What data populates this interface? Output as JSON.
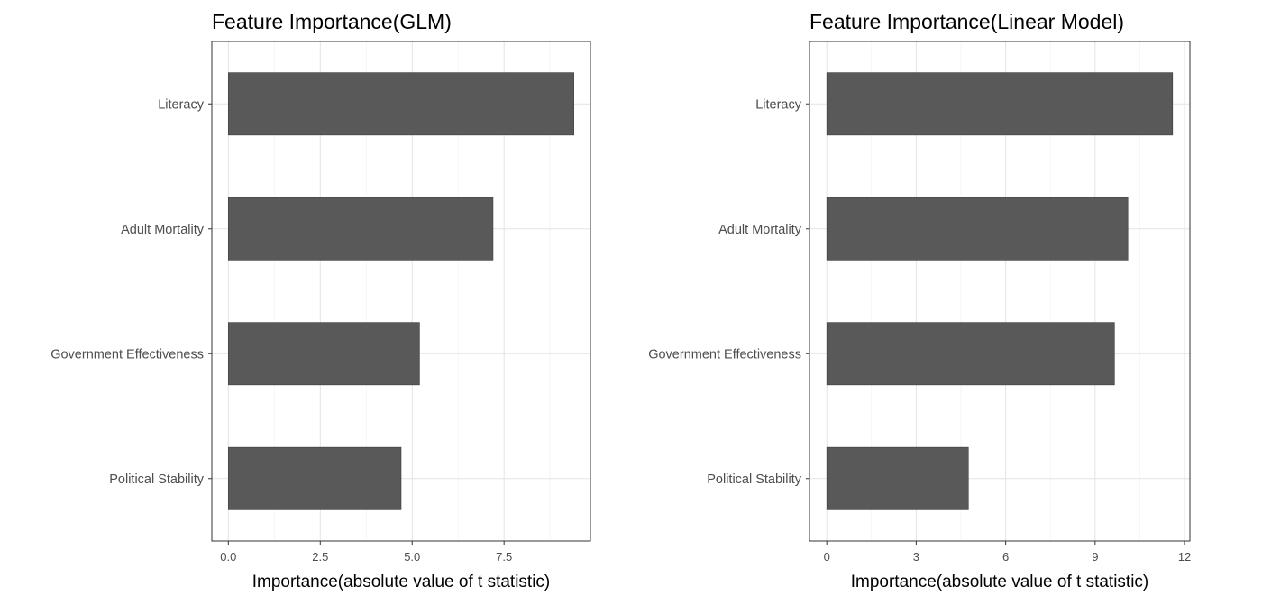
{
  "chart_data": [
    {
      "type": "bar",
      "orientation": "horizontal",
      "title": "Feature Importance(GLM)",
      "xlabel": "Importance(absolute value of t statistic)",
      "ylabel": "",
      "categories": [
        "Literacy",
        "Adult Mortality",
        "Government Effectiveness",
        "Political Stability"
      ],
      "values": [
        9.4,
        7.2,
        5.2,
        4.7
      ],
      "xlim": [
        -0.45,
        9.85
      ],
      "xticks": [
        0,
        2.5,
        5,
        7.5
      ],
      "xtick_labels": [
        "0.0",
        "2.5",
        "5.0",
        "7.5"
      ],
      "grid": true,
      "bar_color": "#595959"
    },
    {
      "type": "bar",
      "orientation": "horizontal",
      "title": "Feature Importance(Linear Model)",
      "xlabel": "Importance(absolute value of t statistic)",
      "ylabel": "",
      "categories": [
        "Literacy",
        "Adult Mortality",
        "Government Effectiveness",
        "Political Stability"
      ],
      "values": [
        11.6,
        10.1,
        9.65,
        4.75
      ],
      "xlim": [
        -0.58,
        12.18
      ],
      "xticks": [
        0,
        3,
        6,
        9,
        12
      ],
      "xtick_labels": [
        "0",
        "3",
        "6",
        "9",
        "12"
      ],
      "grid": true,
      "bar_color": "#595959"
    }
  ]
}
